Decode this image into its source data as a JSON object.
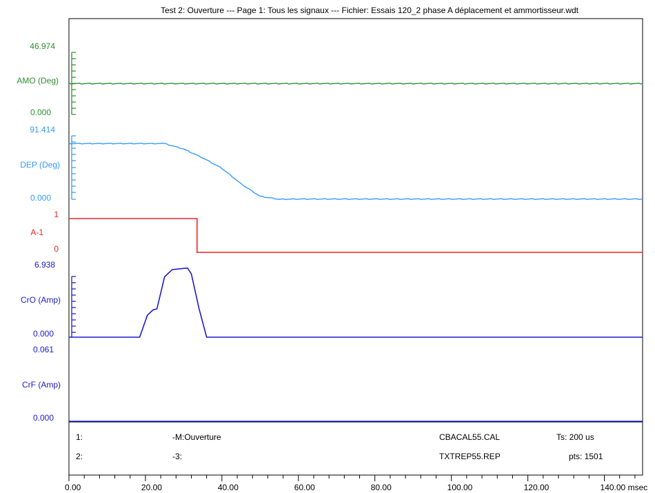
{
  "title": "Test 2: Ouverture --- Page 1: Tous les signaux --- Fichier: Essais 120_2 phase A déplacement et ammortisseur.wdt",
  "colors": {
    "amo": "#2f8f2f",
    "dep": "#3399ff",
    "a1": "#ee2222",
    "cro": "#1a1acc",
    "crf": "#1a1acc",
    "axis": "#000000"
  },
  "channels": {
    "amo": {
      "label": "AMO (Deg)",
      "max": "46.974",
      "min": "0.000"
    },
    "dep": {
      "label": "DEP (Deg)",
      "max": "91.414",
      "min": "0.000"
    },
    "a1": {
      "label": "A-1",
      "max": "1",
      "min": "0"
    },
    "cro": {
      "label": "CrO (Amp)",
      "max": "6.938",
      "min": "0.000"
    },
    "crf": {
      "label": "CrF (Amp)",
      "max": "0.061",
      "min": "0.000"
    }
  },
  "info": {
    "row1": {
      "num": "1:",
      "test": "-M:Ouverture",
      "file": "CBACAL55.CAL",
      "stat": "Ts: 200 us"
    },
    "row2": {
      "num": "2:",
      "test": "-3:",
      "file": "TXTREP55.REP",
      "stat": "pts: 1501"
    }
  },
  "chart_data": {
    "type": "line",
    "title": "Test 2: Ouverture --- Page 1: Tous les signaux --- Fichier: Essais 120_2 phase A déplacement et ammortisseur.wdt",
    "xlabel": "msec",
    "xlim": [
      0,
      150
    ],
    "x_ticks": [
      "0.00",
      "20.00",
      "40.00",
      "60.00",
      "80.00",
      "100.00",
      "120.00",
      "140.00 msec"
    ],
    "series": [
      {
        "name": "AMO (Deg)",
        "ylim": [
          0,
          46.974
        ],
        "x": [
          0,
          150
        ],
        "y": [
          23.4,
          23.4
        ]
      },
      {
        "name": "DEP (Deg)",
        "ylim": [
          0,
          91.414
        ],
        "x": [
          0,
          25,
          30,
          35,
          40,
          45,
          50,
          55,
          60,
          150
        ],
        "y": [
          80.3,
          80.3,
          72.4,
          59.6,
          44.6,
          22.3,
          4.2,
          0,
          0.3,
          0.3
        ]
      },
      {
        "name": "A-1",
        "ylim": [
          0,
          1
        ],
        "x": [
          0,
          33.5,
          33.5,
          150
        ],
        "y": [
          1,
          1,
          0,
          0
        ]
      },
      {
        "name": "CrO (Amp)",
        "ylim": [
          0,
          6.938
        ],
        "x": [
          0,
          18.5,
          20.5,
          22,
          23,
          25,
          27,
          31,
          32,
          34,
          36,
          150
        ],
        "y": [
          0,
          0,
          2.25,
          2.8,
          2.9,
          6.2,
          6.94,
          7.1,
          6.5,
          2.95,
          0,
          0
        ]
      },
      {
        "name": "CrF (Amp)",
        "ylim": [
          0,
          0.061
        ],
        "x": [
          0,
          150
        ],
        "y": [
          0,
          0
        ]
      }
    ]
  }
}
